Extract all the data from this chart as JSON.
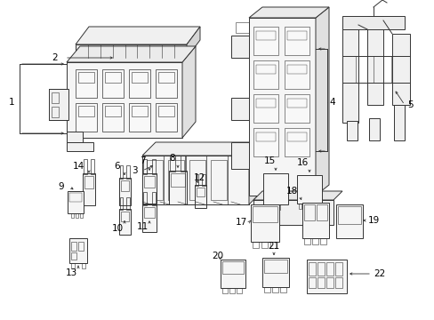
{
  "bg_color": "#ffffff",
  "line_color": "#333333",
  "text_color": "#000000",
  "figsize": [
    4.89,
    3.6
  ],
  "dpi": 100,
  "lw": 0.7,
  "fs": 7.0
}
